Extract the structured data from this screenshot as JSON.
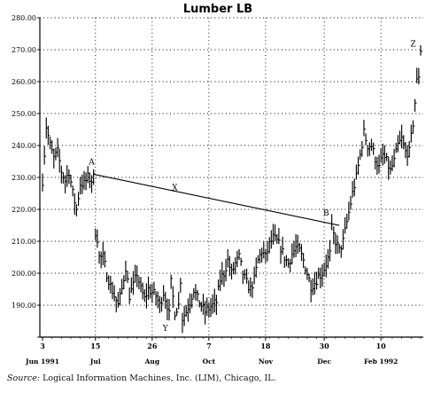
{
  "chart_data": {
    "type": "bar",
    "subtype": "high-low-close price bars",
    "title": "Lumber LB",
    "xlabel": "",
    "ylabel": "",
    "ylim": [
      180,
      280
    ],
    "y_ticks": [
      "180.00",
      "190.00",
      "200.00",
      "210.00",
      "220.00",
      "230.00",
      "240.00",
      "250.00",
      "260.00",
      "270.00",
      "280.00"
    ],
    "y_tick_values": [
      180,
      190,
      200,
      210,
      220,
      230,
      240,
      250,
      260,
      270,
      280
    ],
    "x_ticks": [
      {
        "day": "3",
        "month": "Jun 1991",
        "index": 0
      },
      {
        "day": "15",
        "month": "Jul",
        "index": 28
      },
      {
        "day": "26",
        "month": "Aug",
        "index": 58
      },
      {
        "day": "7",
        "month": "Oct",
        "index": 88
      },
      {
        "day": "18",
        "month": "Nov",
        "index": 118
      },
      {
        "day": "30",
        "month": "Dec",
        "index": 149
      },
      {
        "day": "10",
        "month": "Feb 1992",
        "index": 179
      }
    ],
    "grid": true,
    "legend": "none",
    "series": [
      {
        "close_anchors": [
          [
            0,
            229
          ],
          [
            2,
            246
          ],
          [
            4,
            240
          ],
          [
            6,
            236
          ],
          [
            8,
            238
          ],
          [
            10,
            232
          ],
          [
            12,
            229
          ],
          [
            14,
            232
          ],
          [
            16,
            225
          ],
          [
            18,
            220
          ],
          [
            20,
            228
          ],
          [
            22,
            228
          ],
          [
            24,
            230
          ],
          [
            26,
            229
          ],
          [
            27,
            230
          ],
          [
            28,
            213
          ],
          [
            29,
            211
          ],
          [
            30,
            205
          ],
          [
            32,
            205
          ],
          [
            34,
            200
          ],
          [
            36,
            196
          ],
          [
            38,
            193
          ],
          [
            40,
            190
          ],
          [
            42,
            195
          ],
          [
            44,
            202
          ],
          [
            46,
            193
          ],
          [
            48,
            196
          ],
          [
            50,
            200
          ],
          [
            52,
            195
          ],
          [
            54,
            192
          ],
          [
            56,
            195
          ],
          [
            58,
            194
          ],
          [
            60,
            193
          ],
          [
            62,
            190
          ],
          [
            64,
            194
          ],
          [
            66,
            190
          ],
          [
            67,
            187
          ],
          [
            68,
            197
          ],
          [
            70,
            188
          ],
          [
            72,
            190
          ],
          [
            73,
            198
          ],
          [
            74,
            186
          ],
          [
            76,
            188
          ],
          [
            78,
            191
          ],
          [
            80,
            195
          ],
          [
            82,
            192
          ],
          [
            84,
            190
          ],
          [
            86,
            188
          ],
          [
            88,
            189
          ],
          [
            90,
            190
          ],
          [
            92,
            191
          ],
          [
            94,
            198
          ],
          [
            96,
            200
          ],
          [
            98,
            204
          ],
          [
            100,
            200
          ],
          [
            102,
            203
          ],
          [
            104,
            205
          ],
          [
            106,
            200
          ],
          [
            108,
            197
          ],
          [
            110,
            195
          ],
          [
            112,
            198
          ],
          [
            114,
            204
          ],
          [
            116,
            207
          ],
          [
            118,
            205
          ],
          [
            120,
            209
          ],
          [
            122,
            211
          ],
          [
            124,
            210
          ],
          [
            126,
            208
          ],
          [
            128,
            205
          ],
          [
            130,
            203
          ],
          [
            132,
            206
          ],
          [
            134,
            208
          ],
          [
            136,
            207
          ],
          [
            138,
            204
          ],
          [
            140,
            200
          ],
          [
            142,
            196
          ],
          [
            144,
            197
          ],
          [
            146,
            199
          ],
          [
            148,
            200
          ],
          [
            150,
            203
          ],
          [
            152,
            206
          ],
          [
            153,
            214
          ],
          [
            155,
            210
          ],
          [
            157,
            207
          ],
          [
            159,
            210
          ],
          [
            160,
            213
          ],
          [
            162,
            219
          ],
          [
            164,
            225
          ],
          [
            166,
            230
          ],
          [
            168,
            237
          ],
          [
            170,
            244
          ],
          [
            172,
            240
          ],
          [
            174,
            240
          ],
          [
            176,
            236
          ],
          [
            178,
            233
          ],
          [
            180,
            237
          ],
          [
            182,
            235
          ],
          [
            184,
            232
          ],
          [
            186,
            235
          ],
          [
            188,
            240
          ],
          [
            190,
            242
          ],
          [
            192,
            238
          ],
          [
            194,
            238
          ],
          [
            196,
            247
          ],
          [
            198,
            260
          ],
          [
            199,
            262
          ],
          [
            200,
            270
          ]
        ],
        "high_low_spread": 2.2
      }
    ],
    "trendline": {
      "from": [
        27,
        231
      ],
      "to": [
        157,
        215
      ]
    },
    "annotations": [
      {
        "text": "A",
        "index": 26,
        "value": 234
      },
      {
        "text": "X",
        "index": 70,
        "value": 226
      },
      {
        "text": "Y",
        "index": 65,
        "value": 182
      },
      {
        "text": "B",
        "index": 150,
        "value": 218
      },
      {
        "text": "Z",
        "index": 196,
        "value": 271
      }
    ]
  },
  "source": {
    "label": "Source:",
    "text": "Logical Information Machines, Inc. (LIM), Chicago, IL."
  }
}
